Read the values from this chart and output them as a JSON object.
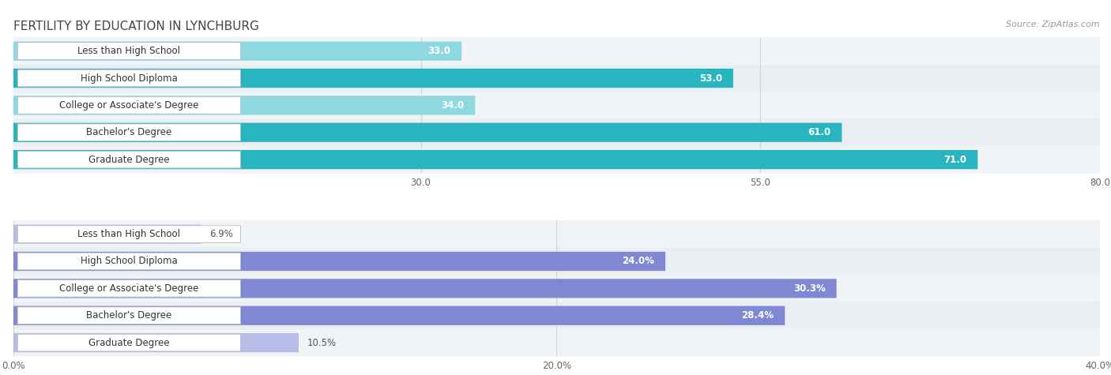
{
  "title": "FERTILITY BY EDUCATION IN LYNCHBURG",
  "source": "Source: ZipAtlas.com",
  "top_section": {
    "categories": [
      "Less than High School",
      "High School Diploma",
      "College or Associate's Degree",
      "Bachelor's Degree",
      "Graduate Degree"
    ],
    "values": [
      33.0,
      53.0,
      34.0,
      61.0,
      71.0
    ],
    "value_labels": [
      "33.0",
      "53.0",
      "34.0",
      "61.0",
      "71.0"
    ],
    "xlim": [
      0,
      80
    ],
    "xticks": [
      30.0,
      55.0,
      80.0
    ],
    "xtick_labels": [
      "30.0",
      "55.0",
      "80.0"
    ],
    "bar_color_light": "#8ed8e0",
    "bar_color_dark": "#28b5bf",
    "threshold": 45.0
  },
  "bottom_section": {
    "categories": [
      "Less than High School",
      "High School Diploma",
      "College or Associate's Degree",
      "Bachelor's Degree",
      "Graduate Degree"
    ],
    "values": [
      6.9,
      24.0,
      30.3,
      28.4,
      10.5
    ],
    "value_labels": [
      "6.9%",
      "24.0%",
      "30.3%",
      "28.4%",
      "10.5%"
    ],
    "xlim": [
      0,
      40
    ],
    "xticks": [
      0.0,
      20.0,
      40.0
    ],
    "xtick_labels": [
      "0.0%",
      "20.0%",
      "40.0%"
    ],
    "bar_color_light": "#b8bde8",
    "bar_color_dark": "#8088d4",
    "threshold": 20.0
  },
  "label_font_size": 8.5,
  "value_font_size": 8.5,
  "title_font_size": 11,
  "bg_color": "#ffffff",
  "row_even_color": "#f0f4f6",
  "row_odd_color": "#e8eef2",
  "label_box_bg": "#ffffff",
  "label_box_border": "#bbbbbb",
  "grid_color": "#cccccc",
  "source_color": "#999999",
  "title_color": "#444444"
}
